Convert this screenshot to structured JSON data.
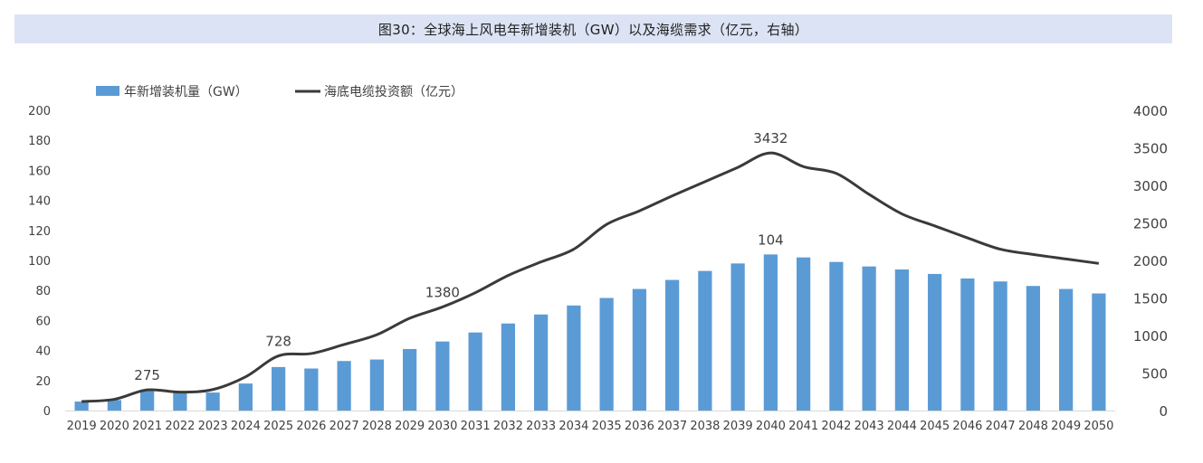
{
  "chart_data": {
    "title": "图30：全球海上风电年新增装机（GW）以及海缆需求（亿元，右轴）",
    "type": "bar+line",
    "categories": [
      "2019",
      "2020",
      "2021",
      "2022",
      "2023",
      "2024",
      "2025",
      "2026",
      "2027",
      "2028",
      "2029",
      "2030",
      "2031",
      "2032",
      "2033",
      "2034",
      "2035",
      "2036",
      "2037",
      "2038",
      "2039",
      "2040",
      "2041",
      "2042",
      "2043",
      "2044",
      "2045",
      "2046",
      "2047",
      "2048",
      "2049",
      "2050"
    ],
    "series": [
      {
        "name": "年新增装机量（GW）",
        "type": "bar",
        "axis": "left",
        "color": "#5b9bd5",
        "values": [
          6,
          7,
          14,
          12,
          12,
          18,
          29,
          28,
          33,
          34,
          41,
          46,
          52,
          58,
          64,
          70,
          75,
          81,
          87,
          93,
          98,
          104,
          102,
          99,
          96,
          94,
          91,
          88,
          86,
          83,
          81,
          78
        ]
      },
      {
        "name": "海底电缆投资额（亿元）",
        "type": "line",
        "axis": "right",
        "color": "#3a3a3a",
        "values": [
          120,
          150,
          275,
          245,
          280,
          450,
          728,
          760,
          880,
          1010,
          1230,
          1380,
          1570,
          1800,
          1980,
          2150,
          2480,
          2660,
          2860,
          3050,
          3240,
          3432,
          3250,
          3160,
          2880,
          2620,
          2460,
          2300,
          2150,
          2080,
          2020,
          1960
        ]
      }
    ],
    "left_axis": {
      "min": 0,
      "max": 200,
      "ticks": [
        "0",
        "20",
        "40",
        "60",
        "80",
        "100",
        "120",
        "140",
        "160",
        "180",
        "200"
      ]
    },
    "right_axis": {
      "min": 0,
      "max": 4000,
      "ticks": [
        "0",
        "500",
        "1000",
        "1500",
        "2000",
        "2500",
        "3000",
        "3500",
        "4000"
      ]
    },
    "annotations": [
      {
        "series": 1,
        "index": 2,
        "label": "275"
      },
      {
        "series": 1,
        "index": 6,
        "label": "728"
      },
      {
        "series": 1,
        "index": 11,
        "label": "1380"
      },
      {
        "series": 1,
        "index": 21,
        "label": "3432"
      },
      {
        "series": 0,
        "index": 21,
        "label": "104"
      }
    ],
    "legend_position": "top-left",
    "grid": false
  }
}
